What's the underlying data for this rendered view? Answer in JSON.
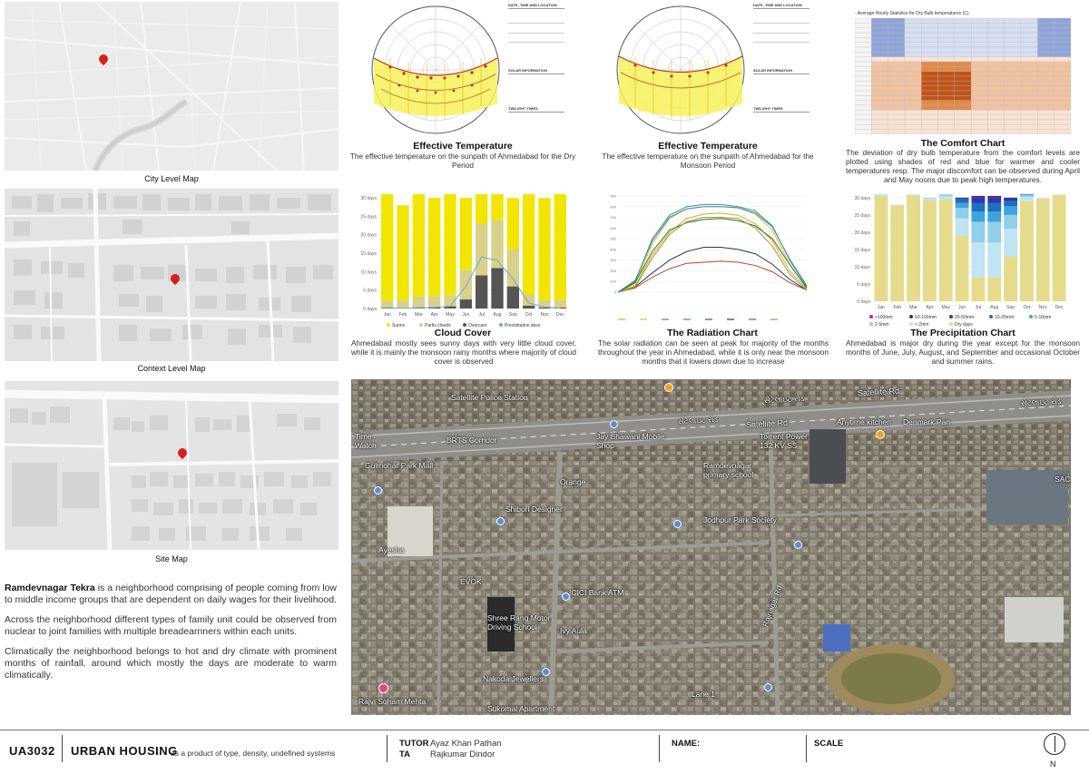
{
  "maps": {
    "city_caption": "City Level Map",
    "context_caption": "Context Level Map",
    "site_caption": "Site Map"
  },
  "sunpath_dry": {
    "title": "Effective Temperature",
    "desc": "The effective temperature on the sunpath of Ahmedabad for the Dry Period"
  },
  "sunpath_monsoon": {
    "title": "Effective Temperature",
    "desc": "The effective temperature on the sunpath of Ahmedabad for the Monsoon Period"
  },
  "sun_info_labels": {
    "h1": "DATE, TIME AND LOCATION",
    "h2": "SOLAR INFORMATION",
    "h3": "TWILIGHT TIMES"
  },
  "comfort": {
    "chart_title": "- Average Hourly Statistics for Dry Bulb temperatures (C)",
    "title": "The Comfort Chart",
    "desc": "The deviation of dry bulb temperature from the comfort levels are plotted using shades of red and blue for warmer and cooler temperatures resp. The major discomfort can be observed during April and May noons due to peak high temperatures."
  },
  "cloud": {
    "title": "Cloud Cover",
    "desc": "Ahmedabad mostly sees sunny days with very little cloud cover, while it is mainly the monsoon rainy months where majority of cloud cover is observed",
    "legend": [
      "Sunny",
      "Partly cloudy",
      "Overcast",
      "Precipitation days"
    ],
    "y_ticks": [
      "30 days",
      "25 days",
      "20 days",
      "15 days",
      "10 days",
      "5 days",
      "0 days"
    ]
  },
  "radiation": {
    "title": "The Radiation Chart",
    "desc": "The solar radiation can be seen at peak for majority of the months throughout the year in Ahmedabad, while it is only near the monsoon months that it lowers down due to increase",
    "y_ticks": [
      "900",
      "800",
      "700",
      "600",
      "500",
      "400",
      "300",
      "200",
      "100",
      "0"
    ]
  },
  "precip": {
    "title": "The Precipitation Chart",
    "desc": "Ahmedabad is major dry during the year except for the monsoon months of June, July, August, and September and occasional October and summer rains.",
    "legend": [
      ">100mm",
      "50-100mm",
      "20-50mm",
      "10-20mm",
      "5-10mm",
      "2-5mm",
      "< 2mm",
      "Dry days"
    ],
    "y_ticks": [
      "30 days",
      "25 days",
      "20 days",
      "15 days",
      "10 days",
      "5 days",
      "0 days"
    ]
  },
  "months": [
    "Jan",
    "Feb",
    "Mar",
    "Apr",
    "May",
    "Jun",
    "Jul",
    "Aug",
    "Sep",
    "Oct",
    "Nov",
    "Dec"
  ],
  "chart_data": [
    {
      "type": "bar",
      "title": "Cloud Cover",
      "categories": [
        "Jan",
        "Feb",
        "Mar",
        "Apr",
        "May",
        "Jun",
        "Jul",
        "Aug",
        "Sep",
        "Oct",
        "Nov",
        "Dec"
      ],
      "ylim": [
        0,
        31
      ],
      "series": [
        {
          "name": "Overcast",
          "values": [
            0.2,
            0.2,
            0.3,
            0.4,
            0.6,
            2.5,
            9,
            11,
            6,
            0.8,
            0.3,
            0.3
          ]
        },
        {
          "name": "Partly cloudy",
          "values": [
            2,
            2,
            3,
            3,
            3,
            8,
            14,
            13,
            10,
            3,
            2,
            2
          ]
        },
        {
          "name": "Sunny",
          "values": [
            28.8,
            25.8,
            27.7,
            26.6,
            27.4,
            19.5,
            8,
            7,
            14,
            27.2,
            27.7,
            28.7
          ]
        },
        {
          "name": "Precipitation days",
          "values": [
            0.2,
            0.1,
            0.2,
            0.3,
            0.6,
            6,
            14,
            13,
            8,
            1.5,
            0.4,
            0.1
          ]
        }
      ]
    },
    {
      "type": "line",
      "title": "The Radiation Chart",
      "ylim": [
        0,
        900
      ],
      "series": [
        {
          "name": "Jan",
          "values": [
            0,
            60,
            350,
            560,
            690,
            730,
            740,
            720,
            640,
            480,
            200,
            30
          ]
        },
        {
          "name": "Mar",
          "values": [
            0,
            80,
            450,
            690,
            780,
            800,
            800,
            790,
            730,
            580,
            260,
            40
          ]
        },
        {
          "name": "Apr",
          "values": [
            0,
            100,
            500,
            720,
            800,
            820,
            820,
            800,
            760,
            620,
            300,
            50
          ]
        },
        {
          "name": "May",
          "values": [
            0,
            110,
            480,
            700,
            780,
            800,
            800,
            790,
            740,
            610,
            310,
            60
          ]
        },
        {
          "name": "Jun",
          "values": [
            0,
            90,
            380,
            580,
            650,
            680,
            690,
            670,
            620,
            500,
            260,
            40
          ]
        },
        {
          "name": "Jul",
          "values": [
            0,
            50,
            180,
            300,
            380,
            420,
            420,
            400,
            360,
            260,
            120,
            20
          ]
        },
        {
          "name": "Aug",
          "values": [
            0,
            40,
            140,
            220,
            270,
            280,
            290,
            280,
            250,
            190,
            90,
            20
          ]
        },
        {
          "name": "Nov",
          "values": [
            0,
            50,
            320,
            540,
            660,
            700,
            700,
            690,
            600,
            430,
            170,
            20
          ]
        }
      ]
    },
    {
      "type": "bar",
      "title": "The Precipitation Chart",
      "categories": [
        "Jan",
        "Feb",
        "Mar",
        "Apr",
        "May",
        "Jun",
        "Jul",
        "Aug",
        "Sep",
        "Oct",
        "Nov",
        "Dec"
      ],
      "ylim": [
        0,
        31
      ],
      "series": [
        {
          "name": "Dry days",
          "values": [
            30.5,
            27.8,
            30.6,
            29.3,
            29.6,
            19,
            7,
            7,
            13,
            29,
            29.8,
            30.7
          ]
        },
        {
          "name": "< 2mm",
          "values": [
            0.3,
            0.2,
            0.3,
            0.4,
            0.8,
            5,
            10,
            10,
            8,
            1.2,
            0.1,
            0.2
          ]
        },
        {
          "name": "2-5mm",
          "values": [
            0.1,
            0,
            0,
            0.2,
            0.4,
            3,
            6,
            6,
            4,
            0.5,
            0,
            0
          ]
        },
        {
          "name": "5-10mm",
          "values": [
            0,
            0,
            0,
            0,
            0.1,
            1.5,
            3,
            3,
            2.5,
            0.2,
            0,
            0
          ]
        },
        {
          "name": "10-20mm",
          "values": [
            0,
            0,
            0,
            0,
            0,
            1,
            2.5,
            2.5,
            1.5,
            0.1,
            0,
            0
          ]
        },
        {
          "name": "20-50mm",
          "values": [
            0,
            0,
            0,
            0,
            0,
            0.5,
            1.5,
            1.5,
            1,
            0,
            0,
            0
          ]
        },
        {
          "name": "50-100mm",
          "values": [
            0,
            0,
            0,
            0,
            0,
            0,
            0.5,
            0.5,
            0,
            0,
            0,
            0
          ]
        }
      ]
    }
  ],
  "intro": {
    "lead": "Ramdevnagar Tekra",
    "p1_rest": " is a neighborhood comprising of people coming from low to middle income groups that are dependent on daily wages for their livelihood.",
    "p2": "Across the neighborhood different types of family unit could be observed from nuclear to joint families with multiple breadearnners within each units.",
    "p3": "Climatically the neighborhood belongs to hot and dry climate with prominent months of rainfall, around which mostly the days are moderate to warm climatically."
  },
  "satellite": {
    "labels": [
      "Satellite Police Station",
      "Satellite Rd",
      "Satellite Rd",
      "BRTS Corridor",
      "Jay Bhawani Mobile Shop",
      "Anytime kitchen",
      "Denmark Pan",
      "Torrent Power 132 KV SS",
      "Gulmohar Park Mall",
      "Orange",
      "Ramdevnagar primary school",
      "Shibori Designer",
      "Jodhpur Park Society",
      "Ayesha",
      "EVOK",
      "ICICI Bank ATM",
      "Shree Rang Motor Driving School",
      "Ivy Aula",
      "Rajvi Soham Mehta",
      "Nakoda Jewellers",
      "Sukomal Apartment",
      "Lane 1",
      "Rajnagar Rd",
      "Time Watch",
      "SAC"
    ],
    "gujarati": [
      "સેટેલાઇટ રોડ",
      "સેટેલાઇટ રોડ",
      "સેટેલાઇટ રોડ"
    ]
  },
  "footer": {
    "code": "UA3032",
    "course": "URBAN HOUSING",
    "course_sub": "as a product of type, density, undefined systems",
    "tutor_label": "TUTOR",
    "tutor": "Ayaz Khan Pathan",
    "ta_label": "TA",
    "ta": "Rajkumar Dindor",
    "name_label": "NAME:",
    "scale_label": "SCALE",
    "north": "N"
  }
}
